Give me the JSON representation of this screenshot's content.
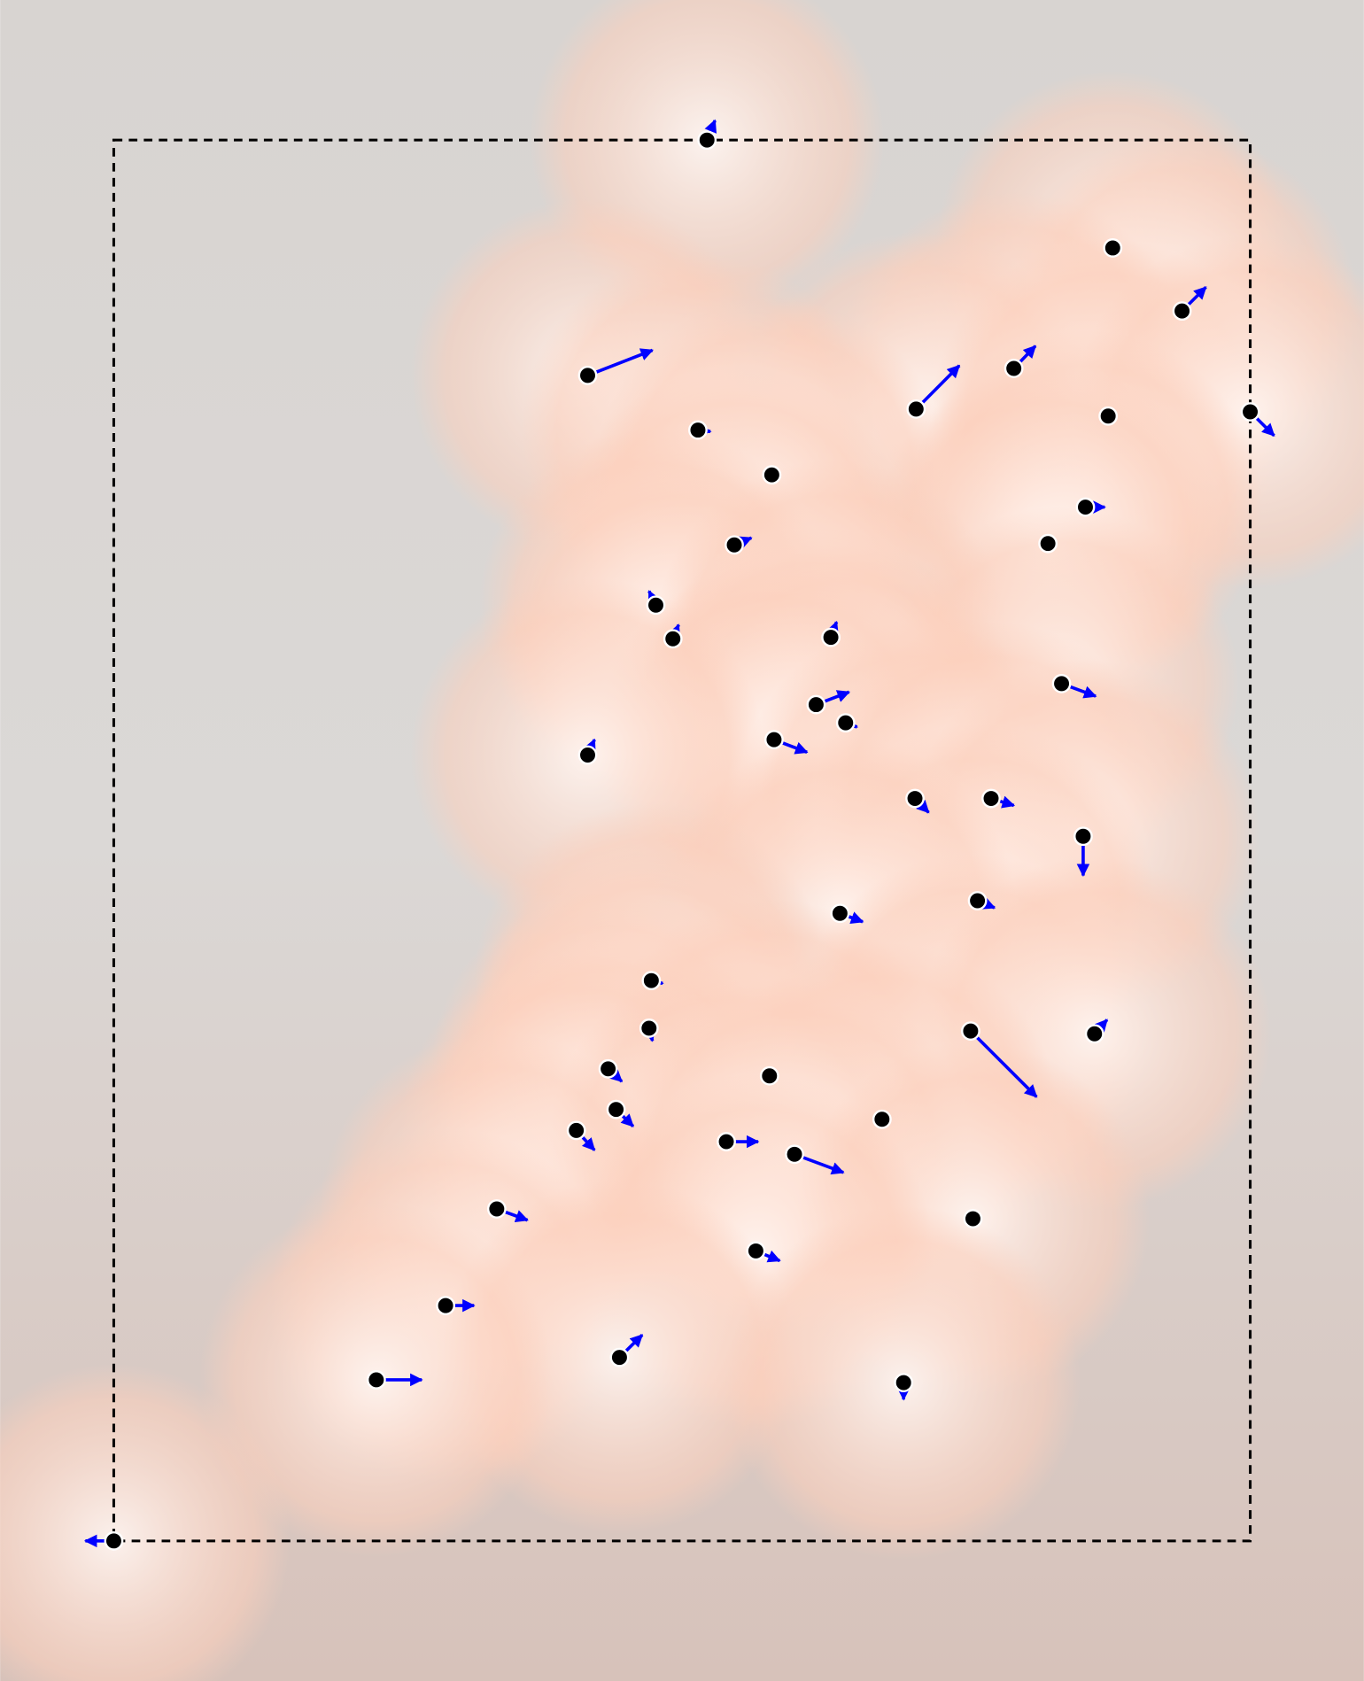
{
  "chart_data": {
    "type": "quiver",
    "x": [
      0.522,
      0.879,
      0.94,
      0.417,
      0.792,
      0.706,
      0.875,
      1.0,
      0.514,
      0.579,
      0.855,
      0.546,
      0.822,
      0.477,
      0.492,
      0.631,
      0.834,
      0.618,
      0.644,
      0.581,
      0.417,
      0.705,
      0.772,
      0.853,
      0.76,
      0.639,
      0.473,
      0.471,
      0.754,
      0.863,
      0.435,
      0.577,
      0.442,
      0.407,
      0.676,
      0.539,
      0.599,
      0.337,
      0.756,
      0.565,
      0.292,
      0.445,
      0.231,
      0.695,
      0.0
    ],
    "y": [
      1.0,
      0.923,
      0.878,
      0.832,
      0.837,
      0.808,
      0.803,
      0.806,
      0.793,
      0.761,
      0.738,
      0.711,
      0.712,
      0.668,
      0.644,
      0.645,
      0.612,
      0.597,
      0.584,
      0.572,
      0.561,
      0.53,
      0.53,
      0.503,
      0.457,
      0.448,
      0.4,
      0.366,
      0.364,
      0.362,
      0.337,
      0.332,
      0.308,
      0.293,
      0.301,
      0.285,
      0.276,
      0.237,
      0.23,
      0.207,
      0.168,
      0.131,
      0.115,
      0.113,
      0.0
    ],
    "u": [
      0.007,
      0,
      0.021,
      0.057,
      0.019,
      0.038,
      0,
      0.021,
      0.011,
      0,
      0.017,
      0.015,
      0,
      -0.006,
      0.005,
      0.005,
      0.03,
      0.029,
      0.01,
      0.029,
      0.006,
      0.012,
      0.02,
      0,
      0.015,
      0.02,
      0.01,
      0.003,
      0.058,
      0.011,
      0.012,
      0,
      0.015,
      0.016,
      0,
      0.028,
      0.043,
      0.027,
      0,
      0.021,
      0.025,
      0.02,
      0.04,
      0,
      -0.025
    ],
    "v": [
      0.014,
      0,
      0.017,
      0.018,
      0.016,
      0.031,
      0,
      -0.017,
      -0.001,
      0,
      0,
      0.005,
      0,
      0.01,
      0.01,
      0.011,
      -0.009,
      0.009,
      -0.003,
      -0.009,
      0.011,
      -0.01,
      -0.005,
      -0.028,
      -0.005,
      -0.006,
      -0.002,
      -0.009,
      -0.047,
      0.01,
      -0.009,
      0,
      -0.012,
      -0.014,
      0,
      0,
      -0.013,
      -0.008,
      0,
      -0.007,
      0,
      0.016,
      0,
      -0.012,
      0
    ],
    "xlim": [
      -0.1,
      1.1
    ],
    "ylim": [
      -0.1,
      1.1
    ],
    "box": {
      "x": [
        0,
        1
      ],
      "y": [
        0,
        1
      ]
    },
    "point_color": "#000000",
    "arrow_color": "#0000ff"
  }
}
